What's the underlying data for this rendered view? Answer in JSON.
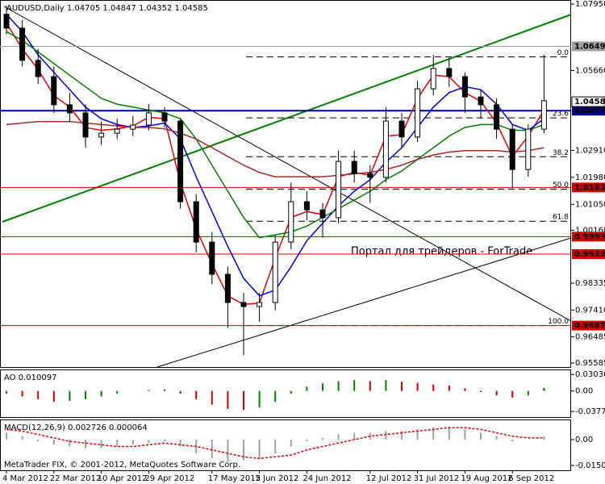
{
  "chart_data": [
    {
      "type": "candlestick",
      "title": "AUDUSD,Daily  1.04705 1.04847 1.04352 1.04585",
      "categories": [
        "4 Mar 2012",
        null,
        null,
        "22 Mar 2012",
        null,
        null,
        "10 Apr 2012",
        null,
        null,
        "29 Apr 2012",
        null,
        null,
        null,
        "17 May 2012",
        null,
        null,
        "5 Jun 2012",
        null,
        null,
        "24 Jun 2012",
        null,
        null,
        null,
        "12 Jul 2012",
        null,
        null,
        "31 Jul 2012",
        null,
        null,
        "19 Aug 2012",
        null,
        null,
        "6 Sep 2012",
        null,
        null
      ],
      "open": [
        1.076,
        1.0712,
        1.0601,
        1.0545,
        1.0448,
        1.042,
        1.0337,
        1.035,
        1.0364,
        1.0378,
        1.042,
        1.0392,
        1.0114,
        0.9975,
        0.9864,
        0.9767,
        0.9753,
        0.9767,
        0.9975,
        1.0114,
        1.0086,
        1.0059,
        1.0253,
        1.0211,
        1.0198,
        1.0392,
        1.0337,
        1.0503,
        1.0573,
        1.0545,
        1.0475,
        1.0448,
        1.0364,
        1.0225,
        1.0364
      ],
      "high": [
        1.079,
        1.074,
        1.064,
        1.058,
        1.049,
        1.045,
        1.039,
        1.04,
        1.041,
        1.045,
        1.044,
        1.04,
        1.014,
        1.001,
        0.989,
        0.98,
        0.98,
        1.0,
        1.018,
        1.015,
        1.011,
        1.029,
        1.029,
        1.024,
        1.044,
        1.042,
        1.053,
        1.062,
        1.061,
        1.056,
        1.05,
        1.047,
        1.038,
        1.038,
        1.062
      ],
      "low": [
        1.069,
        1.058,
        1.052,
        1.042,
        1.039,
        1.03,
        1.031,
        1.033,
        1.034,
        1.036,
        1.037,
        1.009,
        0.994,
        0.983,
        0.968,
        0.9585,
        0.97,
        0.974,
        0.995,
        1.005,
        0.999,
        1.004,
        1.018,
        1.011,
        1.018,
        1.03,
        1.032,
        1.048,
        1.051,
        1.042,
        1.04,
        1.033,
        1.016,
        1.02,
        1.035
      ],
      "close": [
        1.0712,
        1.0601,
        1.0545,
        1.0448,
        1.042,
        1.0337,
        1.035,
        1.0364,
        1.0378,
        1.042,
        1.0392,
        1.0114,
        0.9975,
        0.9864,
        0.9767,
        0.9753,
        0.9767,
        0.9975,
        1.0114,
        1.0086,
        1.0059,
        1.0253,
        1.0211,
        1.0198,
        1.0392,
        1.0337,
        1.0503,
        1.0573,
        1.0545,
        1.0475,
        1.0448,
        1.0364,
        1.0225,
        1.0364,
        1.0462
      ],
      "lines": [
        {
          "color": "#e00000",
          "values": [
            1.073,
            1.064,
            1.057,
            1.048,
            1.044,
            1.037,
            1.036,
            1.0365,
            1.0375,
            1.0405,
            1.04,
            1.018,
            1.002,
            0.99,
            0.979,
            0.976,
            0.9765,
            0.992,
            1.006,
            1.008,
            1.007,
            1.02,
            1.0215,
            1.0205,
            1.034,
            1.0345,
            1.047,
            1.055,
            1.0545,
            1.049,
            1.046,
            1.0385,
            1.027,
            1.034,
            1.043
          ]
        },
        {
          "color": "#0000e0",
          "values": [
            1.076,
            1.07,
            1.062,
            1.056,
            1.05,
            1.044,
            1.04,
            1.038,
            1.037,
            1.0375,
            1.0385,
            1.033,
            1.02,
            1.008,
            0.996,
            0.985,
            0.979,
            0.981,
            0.989,
            0.998,
            1.004,
            1.01,
            1.015,
            1.019,
            1.025,
            1.03,
            1.037,
            1.044,
            1.049,
            1.051,
            1.05,
            1.045,
            1.038,
            1.036,
            1.04
          ]
        },
        {
          "color": "#008000",
          "values": [
            1.07,
            1.067,
            1.063,
            1.059,
            1.055,
            1.051,
            1.047,
            1.045,
            1.044,
            1.043,
            1.042,
            1.04,
            1.033,
            1.024,
            1.015,
            1.006,
            0.999,
            1.0,
            1.001,
            1.003,
            1.006,
            1.009,
            1.012,
            1.015,
            1.019,
            1.022,
            1.026,
            1.03,
            1.034,
            1.037,
            1.038,
            1.038,
            1.036,
            1.036,
            1.038
          ]
        },
        {
          "color": "#a52a2a",
          "values": [
            1.038,
            1.0385,
            1.039,
            1.039,
            1.039,
            1.0385,
            1.038,
            1.0375,
            1.037,
            1.037,
            1.0365,
            1.035,
            1.033,
            1.03,
            1.027,
            1.024,
            1.0215,
            1.02,
            1.02,
            1.02,
            1.02,
            1.0205,
            1.021,
            1.0215,
            1.0225,
            1.024,
            1.026,
            1.0275,
            1.0285,
            1.029,
            1.029,
            1.029,
            1.0285,
            1.029,
            1.03
          ]
        }
      ],
      "ylim": [
        0.95446,
        1.08089
      ],
      "yticks": [
        {
          "value": 1.0795,
          "label": "1.07950"
        },
        {
          "value": 1.0566,
          "label": "1.05660"
        },
        {
          "value": 1.0291,
          "label": "1.02910"
        },
        {
          "value": 1.0198,
          "label": "1.01980"
        },
        {
          "value": 1.0105,
          "label": "1.01050"
        },
        {
          "value": 1.0016,
          "label": "1.00160"
        },
        0.98335,
        {
          "value": 0.9741,
          "label": "0.97410"
        },
        0.96485,
        0.95585
      ],
      "levels": [
        {
          "value": 1.06492,
          "color": "#a0a0a0"
        },
        {
          "value": 1.04276,
          "color": "#000080"
        },
        {
          "value": 1.01631,
          "color": "#d00000"
        },
        {
          "value": 0.99938,
          "color": "#d00000"
        },
        {
          "value": 0.99336,
          "color": "#d00000"
        },
        {
          "value": 0.96874,
          "color": "#d00000"
        }
      ],
      "current_price": 1.04585,
      "fib": [
        {
          "label": "0.0",
          "price": 1.0613
        },
        {
          "label": "23.6",
          "price": 1.0403
        },
        {
          "label": "38.2",
          "price": 1.0269
        },
        {
          "label": "50.0",
          "price": 1.0157
        },
        {
          "label": "61.8",
          "price": 1.0047
        },
        {
          "label": "100.0",
          "price": 0.96874
        }
      ],
      "watermark": "Портал для трейдеров - ForTrade"
    },
    {
      "type": "bar",
      "title": "AO 0.010097",
      "values": [
        -0.005,
        -0.01,
        -0.015,
        -0.02,
        -0.018,
        -0.015,
        -0.01,
        -0.005,
        0,
        0.002,
        0.003,
        -0.005,
        -0.015,
        -0.025,
        -0.033,
        -0.035,
        -0.03,
        -0.02,
        -0.005,
        0.008,
        0.014,
        0.018,
        0.02,
        0.018,
        0.02,
        0.017,
        0.015,
        0.012,
        0.01,
        0.005,
        -0.002,
        -0.008,
        -0.012,
        -0.008,
        0.006
      ],
      "colors": [
        "#008000",
        "#d00000"
      ],
      "ylim": [
        -0.0478,
        0.038
      ],
      "yticks": [
        0.030363,
        {
          "value": 0,
          "label": "0.00"
        },
        -0.03775
      ]
    },
    {
      "type": "bar",
      "title": "MACD(12,26,9) 0.002726 0.000064",
      "values": [
        0.004,
        0.002,
        -0.001,
        -0.003,
        -0.004,
        -0.005,
        -0.005,
        -0.004,
        -0.003,
        -0.002,
        -0.001,
        -0.004,
        -0.008,
        -0.011,
        -0.013,
        -0.012,
        -0.011,
        -0.008,
        -0.004,
        -0.001,
        0.001,
        0.003,
        0.004,
        0.004,
        0.005,
        0.005,
        0.006,
        0.007,
        0.007,
        0.006,
        0.004,
        0.002,
        -0.001,
        0,
        0.002
      ],
      "color": "#a0a0a0",
      "signal": {
        "color": "#e00000",
        "values": [
          0.006,
          0.005,
          0.003,
          0.001,
          -0.001,
          -0.002,
          -0.003,
          -0.004,
          -0.004,
          -0.003,
          -0.002,
          -0.003,
          -0.004,
          -0.006,
          -0.008,
          -0.01,
          -0.011,
          -0.01,
          -0.009,
          -0.006,
          -0.004,
          -0.002,
          0,
          0.002,
          0.003,
          0.004,
          0.005,
          0.006,
          0.007,
          0.007,
          0.006,
          0.004,
          0.002,
          0.001,
          0.001
        ]
      },
      "ylim": [
        -0.01787,
        0.01129
      ],
      "yticks": [
        {
          "value": 0,
          "label": "0.00"
        },
        -0.01505
      ],
      "footer": "MetaTrader FIX, © 2001-2012, MetaQuotes Software Corp."
    }
  ]
}
